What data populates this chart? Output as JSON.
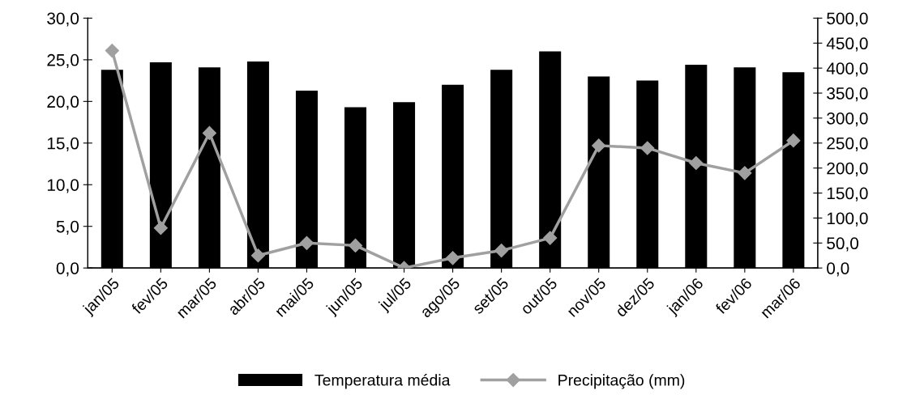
{
  "chart_data": {
    "type": "bar",
    "categories": [
      "jan/05",
      "fev/05",
      "mar/05",
      "abr/05",
      "mai/05",
      "jun/05",
      "jul/05",
      "ago/05",
      "set/05",
      "out/05",
      "nov/05",
      "dez/05",
      "jan/06",
      "fev/06",
      "mar/06"
    ],
    "series": [
      {
        "name": "Temperatura média",
        "color": "#000000",
        "values": [
          23.8,
          24.7,
          24.1,
          24.8,
          21.3,
          19.3,
          19.9,
          22.0,
          23.8,
          26.0,
          23.0,
          22.5,
          24.4,
          24.1,
          23.5
        ]
      },
      {
        "name": "Precipitação (mm)",
        "type": "line",
        "axis": "y2",
        "color": "#a0a0a0",
        "marker": "diamond",
        "values": [
          435,
          80,
          270,
          25,
          50,
          45,
          0,
          20,
          35,
          60,
          245,
          240,
          210,
          190,
          255
        ]
      }
    ],
    "ylim": [
      0,
      30
    ],
    "yticks": [
      {
        "value": 0,
        "label": "0,0"
      },
      {
        "value": 5,
        "label": "5,0"
      },
      {
        "value": 10,
        "label": "10,0"
      },
      {
        "value": 15,
        "label": "15,0"
      },
      {
        "value": 20,
        "label": "20,0"
      },
      {
        "value": 25,
        "label": "25,0"
      },
      {
        "value": 30,
        "label": "30,0"
      }
    ],
    "y2lim": [
      0,
      500
    ],
    "y2ticks": [
      {
        "value": 0,
        "label": "0,0"
      },
      {
        "value": 50,
        "label": "50,0"
      },
      {
        "value": 100,
        "label": "100,0"
      },
      {
        "value": 150,
        "label": "150,0"
      },
      {
        "value": 200,
        "label": "200,0"
      },
      {
        "value": 250,
        "label": "250,0"
      },
      {
        "value": 300,
        "label": "300,0"
      },
      {
        "value": 350,
        "label": "350,0"
      },
      {
        "value": 400,
        "label": "400,0"
      },
      {
        "value": 450,
        "label": "450,0"
      },
      {
        "value": 500,
        "label": "500,0"
      }
    ],
    "grid": false,
    "legend": "bottom"
  }
}
